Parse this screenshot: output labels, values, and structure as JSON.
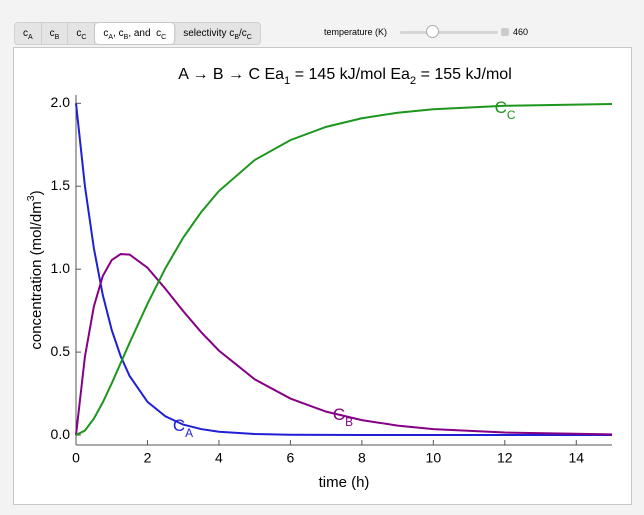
{
  "controls": {
    "tabs": [
      [
        "c",
        "A"
      ],
      [
        "c",
        "B"
      ],
      [
        "c",
        "C"
      ],
      [
        "c",
        "A",
        ", c",
        "B",
        ", and  c",
        "C"
      ],
      [
        "selectivity c",
        "B",
        "/c",
        "C"
      ]
    ],
    "selected_tab": 3,
    "temperature": {
      "label": "temperature (K)",
      "value": 460
    }
  },
  "chart_data": {
    "type": "line",
    "title": [
      "A → B → C      Ea",
      "1",
      " = 145 kJ/mol   Ea",
      "2",
      " = 155 kJ/mol"
    ],
    "xlabel": "time (h)",
    "ylabel": [
      "concentration (mol/dm",
      "3",
      ")"
    ],
    "x": [
      0,
      0.25,
      0.5,
      0.75,
      1,
      1.25,
      1.5,
      2,
      2.5,
      3,
      3.5,
      4,
      5,
      6,
      7,
      8,
      9,
      10,
      12,
      15
    ],
    "series": [
      {
        "name": [
          "C",
          "A"
        ],
        "color": "#1f1fd6",
        "values": [
          2,
          1.5,
          1.126,
          0.844,
          0.633,
          0.475,
          0.356,
          0.2,
          0.113,
          0.063,
          0.036,
          0.02,
          0.006,
          0.002,
          0.001,
          0,
          0,
          0,
          0,
          0
        ]
      },
      {
        "name": [
          "C",
          "B"
        ],
        "color": "#850085",
        "values": [
          0,
          0.473,
          0.775,
          0.959,
          1.055,
          1.091,
          1.088,
          1.009,
          0.882,
          0.747,
          0.621,
          0.509,
          0.336,
          0.22,
          0.141,
          0.09,
          0.057,
          0.036,
          0.015,
          0.004
        ]
      },
      {
        "name": [
          "C",
          "C"
        ],
        "color": "#1c961c",
        "values": [
          0,
          0.027,
          0.099,
          0.197,
          0.312,
          0.434,
          0.556,
          0.791,
          1.005,
          1.19,
          1.343,
          1.471,
          1.658,
          1.778,
          1.858,
          1.91,
          1.943,
          1.964,
          1.985,
          1.996
        ]
      }
    ],
    "xlim": [
      0,
      15
    ],
    "ylim": [
      -0.06,
      2.05
    ],
    "xticks": [
      0,
      2,
      4,
      6,
      8,
      10,
      12,
      14
    ],
    "yticks": [
      {
        "value": 0,
        "label": "0.0"
      },
      {
        "value": 0.5,
        "label": "0.5"
      },
      {
        "value": 1,
        "label": "1.0"
      },
      {
        "value": 1.5,
        "label": "1.5"
      },
      {
        "value": 2,
        "label": "2.0"
      }
    ]
  }
}
